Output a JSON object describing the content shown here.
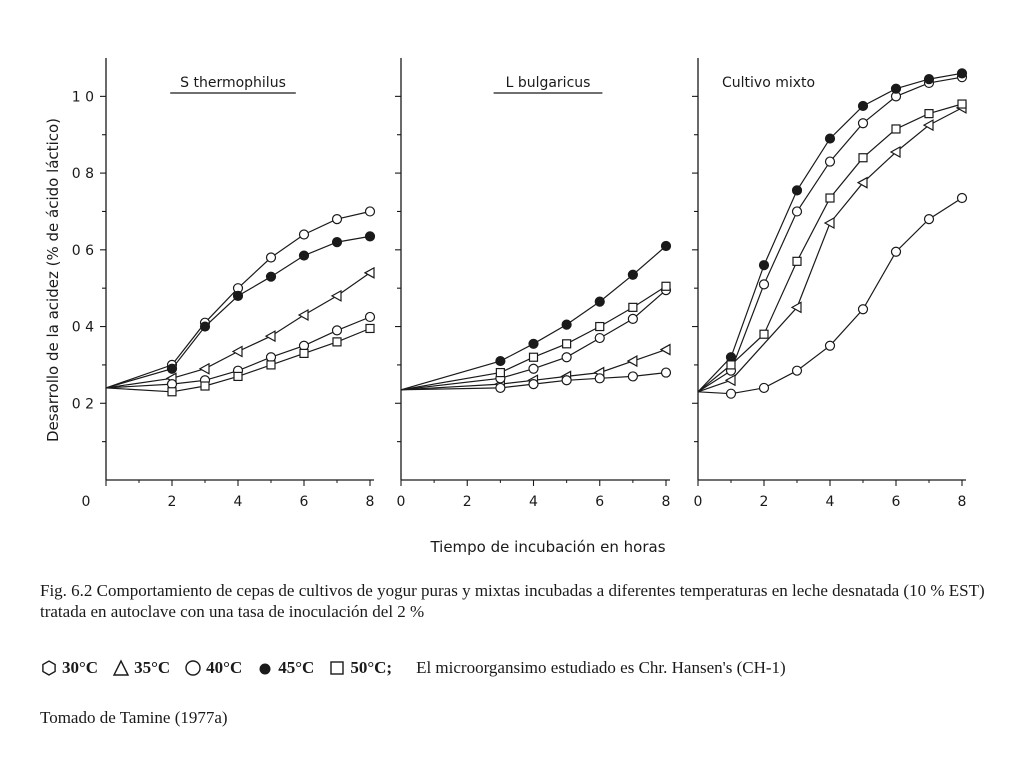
{
  "chart_data": {
    "type": "line",
    "ylabel": "Desarrollo de la acidez (% de ácido láctico)",
    "xlabel": "Tiempo de incubación en horas",
    "ylim": [
      0,
      1.1
    ],
    "xlim": [
      0,
      8
    ],
    "y_ticks": [
      0.2,
      0.4,
      0.6,
      0.8,
      1.0
    ],
    "y_tick_labels": [
      "0 2",
      "0 4",
      "0 6",
      "0 8",
      "1 0"
    ],
    "x_ticks": [
      0,
      2,
      4,
      6,
      8
    ],
    "x_tick_labels": [
      "0",
      "2",
      "4",
      "6",
      "8"
    ],
    "grid": false,
    "panels": [
      {
        "title": "S thermophilus",
        "underline": true,
        "series": [
          {
            "name": "30°C",
            "marker": "hexagon",
            "x": [
              0
            ],
            "y": [
              0.24
            ]
          },
          {
            "name": "35°C",
            "marker": "triangle",
            "x": [
              0,
              2,
              3,
              4,
              5,
              6,
              7,
              8
            ],
            "y": [
              0.24,
              0.265,
              0.29,
              0.335,
              0.375,
              0.43,
              0.48,
              0.54
            ]
          },
          {
            "name": "40°C",
            "marker": "circle-open",
            "x": [
              0,
              2,
              3,
              4,
              5,
              6,
              7,
              8
            ],
            "y": [
              0.24,
              0.3,
              0.41,
              0.5,
              0.58,
              0.64,
              0.68,
              0.7
            ]
          },
          {
            "name": "40°C-b",
            "marker": "circle-open",
            "x": [
              0,
              2,
              3,
              4,
              5,
              6,
              7,
              8
            ],
            "y": [
              0.24,
              0.25,
              0.26,
              0.285,
              0.32,
              0.35,
              0.39,
              0.425
            ]
          },
          {
            "name": "45°C",
            "marker": "circle-filled",
            "x": [
              0,
              2,
              3,
              4,
              5,
              6,
              7,
              8
            ],
            "y": [
              0.24,
              0.29,
              0.4,
              0.48,
              0.53,
              0.585,
              0.62,
              0.635
            ]
          },
          {
            "name": "50°C",
            "marker": "square",
            "x": [
              0,
              2,
              3,
              4,
              5,
              6,
              7,
              8
            ],
            "y": [
              0.24,
              0.23,
              0.245,
              0.27,
              0.3,
              0.33,
              0.36,
              0.395
            ]
          }
        ]
      },
      {
        "title": "L bulgaricus",
        "underline": true,
        "series": [
          {
            "name": "35°C",
            "marker": "triangle",
            "x": [
              0,
              3,
              4,
              5,
              6,
              7,
              8
            ],
            "y": [
              0.235,
              0.25,
              0.26,
              0.27,
              0.28,
              0.31,
              0.34
            ]
          },
          {
            "name": "40°C",
            "marker": "circle-open",
            "x": [
              0,
              3,
              4,
              5,
              6,
              7,
              8
            ],
            "y": [
              0.235,
              0.24,
              0.25,
              0.26,
              0.265,
              0.27,
              0.28
            ]
          },
          {
            "name": "40°C-b",
            "marker": "circle-open",
            "x": [
              0,
              3,
              4,
              5,
              6,
              7,
              8
            ],
            "y": [
              0.235,
              0.265,
              0.29,
              0.32,
              0.37,
              0.42,
              0.495
            ]
          },
          {
            "name": "45°C",
            "marker": "circle-filled",
            "x": [
              0,
              3,
              4,
              5,
              6,
              7,
              8
            ],
            "y": [
              0.235,
              0.31,
              0.355,
              0.405,
              0.465,
              0.535,
              0.61
            ]
          },
          {
            "name": "50°C",
            "marker": "square",
            "x": [
              0,
              3,
              4,
              5,
              6,
              7,
              8
            ],
            "y": [
              0.235,
              0.28,
              0.32,
              0.355,
              0.4,
              0.45,
              0.505
            ]
          }
        ]
      },
      {
        "title": "Cultivo mixto",
        "underline": false,
        "series": [
          {
            "name": "35°C",
            "marker": "triangle",
            "x": [
              0,
              1,
              3,
              4,
              5,
              6,
              7,
              8
            ],
            "y": [
              0.23,
              0.26,
              0.45,
              0.67,
              0.775,
              0.855,
              0.925,
              0.97
            ]
          },
          {
            "name": "40°C",
            "marker": "circle-open",
            "x": [
              0,
              1,
              2,
              3,
              4,
              5,
              6,
              7,
              8
            ],
            "y": [
              0.23,
              0.285,
              0.51,
              0.7,
              0.83,
              0.93,
              1.0,
              1.035,
              1.05
            ]
          },
          {
            "name": "40°C-b",
            "marker": "circle-open",
            "x": [
              0,
              1,
              2,
              3,
              4,
              5,
              6,
              7,
              8
            ],
            "y": [
              0.23,
              0.225,
              0.24,
              0.285,
              0.35,
              0.445,
              0.595,
              0.68,
              0.735
            ]
          },
          {
            "name": "45°C",
            "marker": "circle-filled",
            "x": [
              0,
              1,
              2,
              3,
              4,
              5,
              6,
              7,
              8
            ],
            "y": [
              0.23,
              0.32,
              0.56,
              0.755,
              0.89,
              0.975,
              1.02,
              1.045,
              1.06
            ]
          },
          {
            "name": "50°C",
            "marker": "square",
            "x": [
              0,
              1,
              2,
              3,
              4,
              5,
              6,
              7,
              8
            ],
            "y": [
              0.23,
              0.3,
              0.38,
              0.57,
              0.735,
              0.84,
              0.915,
              0.955,
              0.98
            ]
          }
        ]
      }
    ]
  },
  "caption": {
    "text": "Fig. 6.2 Comportamiento de cepas de cultivos de yogur puras y mixtas incubadas a diferentes temperaturas en leche desnatada (10 % EST) tratada en autoclave con una tasa de inoculación del 2 %"
  },
  "legend": {
    "items": [
      {
        "marker": "hexagon",
        "label": "30°C"
      },
      {
        "marker": "triangle",
        "label": "35°C"
      },
      {
        "marker": "circle-open",
        "label": "40°C"
      },
      {
        "marker": "circle-filled",
        "label": "45°C"
      },
      {
        "marker": "square",
        "label": "50°C;"
      }
    ],
    "note": "El microorgansimo estudiado es Chr. Hansen's (CH-1)"
  },
  "source": "Tomado de Tamine (1977a)",
  "colors": {
    "ink": "#1a1a1a",
    "paper": "#ffffff"
  }
}
